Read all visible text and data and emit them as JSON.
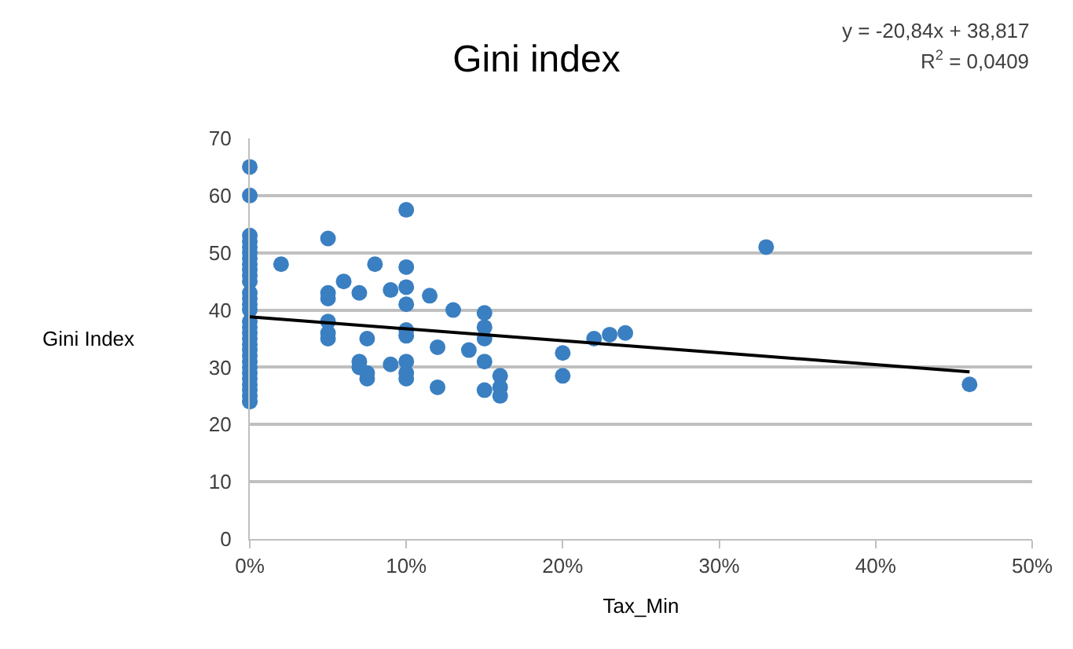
{
  "chart_data": {
    "type": "scatter",
    "title": "Gini index",
    "xlabel": "Tax_Min",
    "ylabel": "Gini Index",
    "annotations": [
      "y = -20,84x + 38,817",
      "R$^{2}$ = 0,0409"
    ],
    "series": [
      {
        "color": "#3a7fc1",
        "marker": "circle",
        "x": [
          0,
          0,
          0,
          0,
          0,
          0,
          0,
          0,
          0,
          0,
          0,
          0,
          0,
          0,
          0,
          0,
          0,
          0,
          0,
          0,
          0,
          0,
          0,
          0,
          0,
          0,
          0,
          0,
          0,
          0,
          0.02,
          0.05,
          0.05,
          0.05,
          0.05,
          0.05,
          0.05,
          0.06,
          0.07,
          0.07,
          0.07,
          0.075,
          0.075,
          0.075,
          0.08,
          0.09,
          0.09,
          0.1,
          0.1,
          0.1,
          0.1,
          0.1,
          0.1,
          0.1,
          0.1,
          0.1,
          0.115,
          0.12,
          0.12,
          0.13,
          0.14,
          0.15,
          0.15,
          0.15,
          0.15,
          0.15,
          0.16,
          0.16,
          0.16,
          0.2,
          0.2,
          0.22,
          0.23,
          0.24,
          0.33,
          0.46
        ],
        "values": [
          65,
          60,
          53,
          52,
          51,
          50,
          49,
          48,
          47,
          46,
          45,
          43,
          42,
          41,
          40,
          38,
          37,
          36,
          35,
          34,
          33,
          32,
          31,
          30,
          29,
          28,
          27,
          26,
          25,
          24,
          48,
          52.5,
          43,
          42,
          38,
          36,
          35,
          45,
          43,
          31,
          30,
          35,
          29,
          28,
          48,
          43.5,
          30.5,
          57.5,
          47.5,
          44,
          41,
          36.5,
          35.5,
          31,
          29,
          28,
          42.5,
          33.5,
          26.5,
          40,
          33,
          39.5,
          37,
          35,
          31,
          26,
          28.5,
          26.5,
          25,
          32.5,
          28.5,
          35,
          35.7,
          36,
          51,
          27
        ]
      },
      {
        "type": "line",
        "color": "#000000",
        "line_style": "solid",
        "marker": "none",
        "x": [
          0,
          0.46
        ],
        "values": [
          38.8,
          29.2
        ]
      }
    ],
    "xlim": [
      0,
      0.5
    ],
    "xticks": [
      {
        "value": 0,
        "label": "0%"
      },
      {
        "value": 0.1,
        "label": "10%"
      },
      {
        "value": 0.2,
        "label": "20%"
      },
      {
        "value": 0.3,
        "label": "30%"
      },
      {
        "value": 0.4,
        "label": "40%"
      },
      {
        "value": 0.5,
        "label": "50%"
      }
    ],
    "ylim": [
      0,
      70
    ],
    "yticks": [
      0,
      10,
      20,
      30,
      40,
      50,
      60,
      70
    ],
    "grid": "y"
  }
}
